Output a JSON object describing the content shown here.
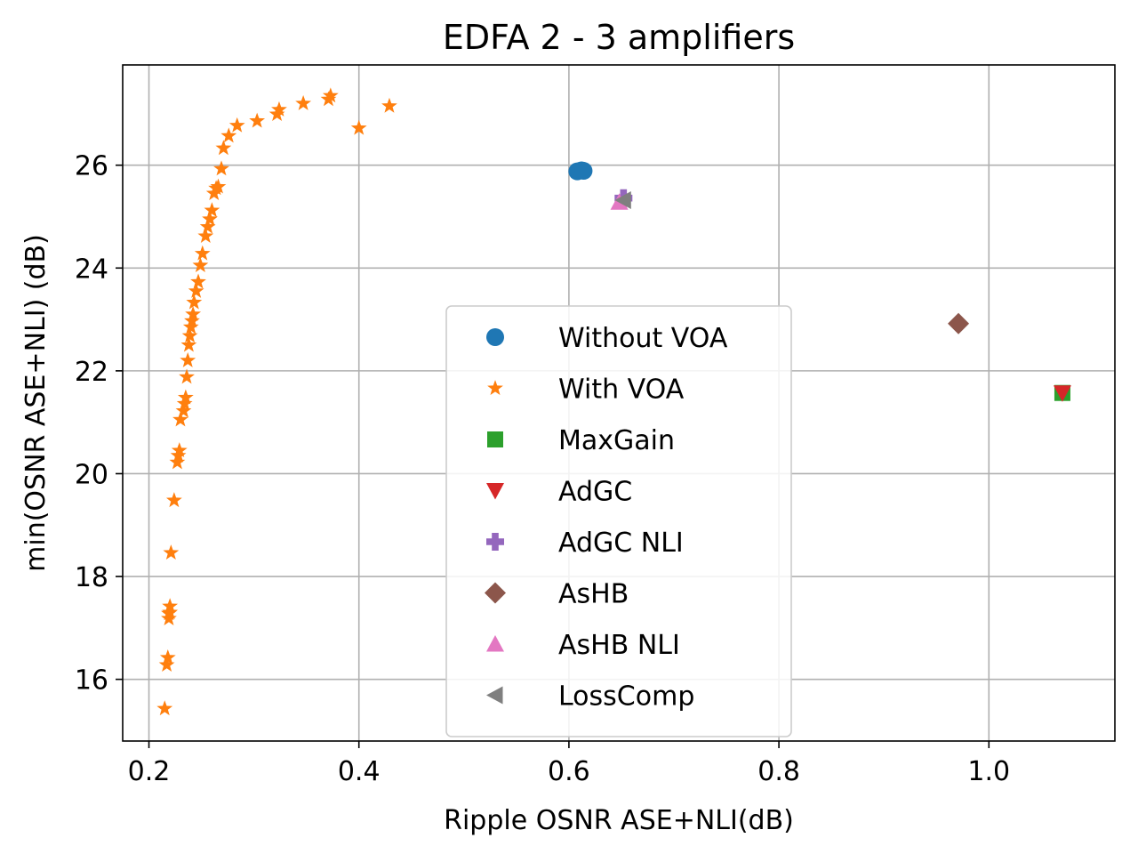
{
  "chart_data": {
    "type": "scatter",
    "title": "EDFA 2 - 3 amplifiers",
    "xlabel": "Ripple OSNR ASE+NLI(dB)",
    "ylabel": "min(OSNR ASE+NLI) (dB)",
    "xlim": [
      0.175,
      1.12
    ],
    "ylim": [
      14.8,
      27.95
    ],
    "xticks": [
      0.2,
      0.4,
      0.6,
      0.8,
      1.0
    ],
    "xtick_labels": [
      "0.2",
      "0.4",
      "0.6",
      "0.8",
      "1.0"
    ],
    "yticks": [
      16,
      18,
      20,
      22,
      24,
      26
    ],
    "ytick_labels": [
      "16",
      "18",
      "20",
      "22",
      "24",
      "26"
    ],
    "grid": true,
    "legend_position": "center-bottom",
    "series": [
      {
        "name": "Without VOA",
        "marker": "circle",
        "color": "#1f77b4",
        "x": [
          0.608,
          0.612,
          0.614
        ],
        "y": [
          25.88,
          25.9,
          25.89
        ]
      },
      {
        "name": "With VOA",
        "marker": "star",
        "color": "#ff7f0e",
        "x": [
          0.215,
          0.217,
          0.218,
          0.219,
          0.219,
          0.22,
          0.22,
          0.221,
          0.224,
          0.227,
          0.228,
          0.229,
          0.23,
          0.233,
          0.234,
          0.235,
          0.236,
          0.237,
          0.238,
          0.239,
          0.24,
          0.241,
          0.242,
          0.243,
          0.245,
          0.247,
          0.249,
          0.251,
          0.254,
          0.256,
          0.258,
          0.26,
          0.262,
          0.264,
          0.266,
          0.269,
          0.271,
          0.276,
          0.284,
          0.303,
          0.322,
          0.324,
          0.347,
          0.371,
          0.373,
          0.4,
          0.429
        ],
        "y": [
          15.43,
          16.28,
          16.42,
          17.18,
          17.28,
          17.42,
          17.3,
          18.46,
          19.48,
          20.22,
          20.35,
          20.45,
          21.05,
          21.22,
          21.36,
          21.48,
          21.88,
          22.2,
          22.5,
          22.68,
          22.85,
          22.97,
          23.1,
          23.33,
          23.55,
          23.73,
          24.05,
          24.28,
          24.62,
          24.8,
          24.95,
          25.12,
          25.45,
          25.55,
          25.58,
          25.93,
          26.33,
          26.57,
          26.77,
          26.86,
          26.99,
          27.08,
          27.2,
          27.28,
          27.35,
          26.72,
          27.15
        ],
        "note": ""
      },
      {
        "name": "MaxGain",
        "marker": "square",
        "color": "#2ca02c",
        "x": [
          1.07
        ],
        "y": [
          21.57
        ]
      },
      {
        "name": "AdGC",
        "marker": "triangle-down",
        "color": "#d62728",
        "x": [
          1.07
        ],
        "y": [
          21.57
        ]
      },
      {
        "name": "AdGC NLI",
        "marker": "plus",
        "color": "#9467bd",
        "x": [
          0.652
        ],
        "y": [
          25.36
        ]
      },
      {
        "name": "AsHB",
        "marker": "diamond",
        "color": "#8c564b",
        "x": [
          0.971
        ],
        "y": [
          22.92
        ]
      },
      {
        "name": "AsHB NLI",
        "marker": "triangle-up",
        "color": "#e377c2",
        "x": [
          0.648
        ],
        "y": [
          25.28
        ]
      },
      {
        "name": "LossComp",
        "marker": "triangle-left",
        "color": "#7f7f7f",
        "x": [
          0.652
        ],
        "y": [
          25.32
        ]
      }
    ]
  }
}
